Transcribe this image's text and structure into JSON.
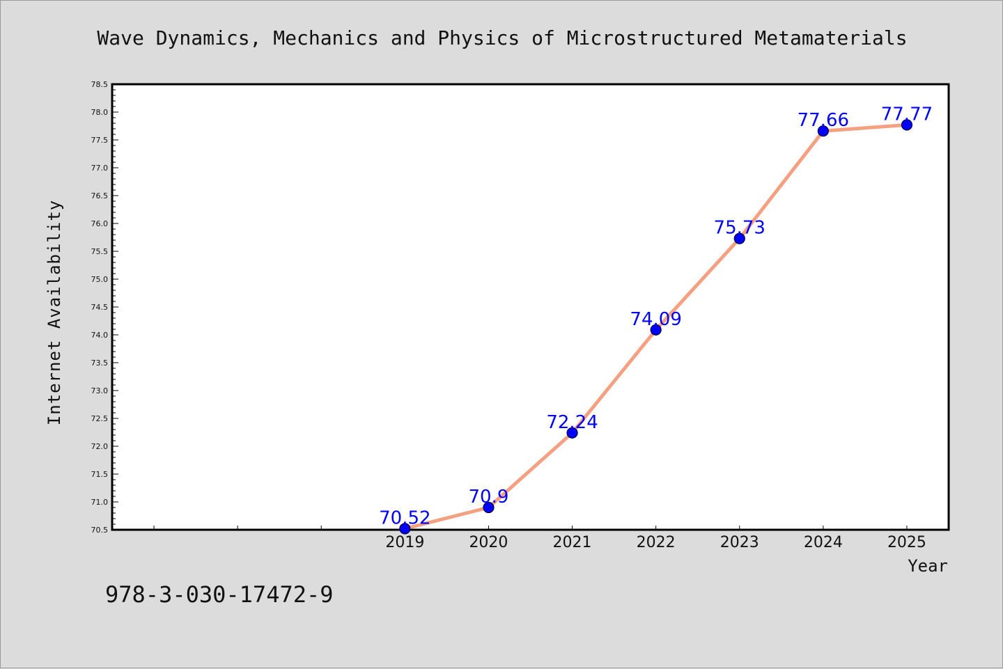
{
  "chart_data": {
    "type": "line",
    "title": "Wave Dynamics, Mechanics and Physics of Microstructured Metamaterials",
    "xlabel": "Year",
    "ylabel": "Internet Availability",
    "categories": [
      "2019",
      "2020",
      "2021",
      "2022",
      "2023",
      "2024",
      "2025"
    ],
    "series": [
      {
        "values": [
          70.52,
          70.9,
          72.24,
          74.09,
          75.73,
          77.66,
          77.77
        ]
      }
    ],
    "data_labels": [
      "70.52",
      "70.9",
      "72.24",
      "74.09",
      "75.73",
      "77.66",
      "77.77"
    ],
    "x_range": [
      2015.5,
      2025.5
    ],
    "ylim": [
      70.5,
      78.5
    ],
    "y_major_step": 0.5,
    "y_tick_labels": [
      "70.5",
      "71.0",
      "71.5",
      "72.0",
      "72.5",
      "73.0",
      "73.5",
      "74.0",
      "74.5",
      "75.0",
      "75.5",
      "76.0",
      "76.5",
      "77.0",
      "77.5",
      "78.0",
      "78.5"
    ],
    "grid": false,
    "legend": "none",
    "colors": {
      "line": "#f4a081",
      "marker": "#0000ff",
      "marker_edge": "#000033",
      "label": "#0000ff",
      "background": "#dcdcdc",
      "plot_area": "#ffffff"
    }
  },
  "annotation": "978-3-030-17472-9"
}
